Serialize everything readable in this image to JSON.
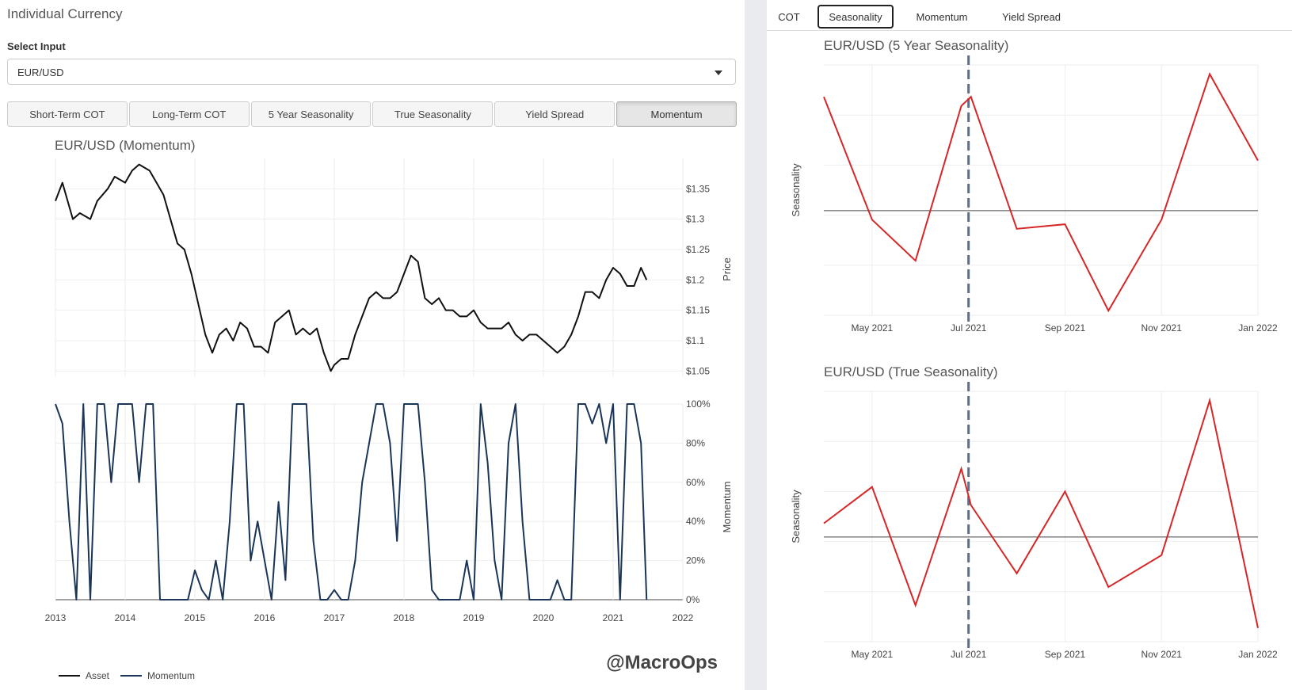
{
  "left_panel": {
    "title": "Individual Currency",
    "input_label": "Select Input",
    "select_value": "EUR/USD",
    "buttons": [
      "Short-Term COT",
      "Long-Term COT",
      "5 Year Seasonality",
      "True Seasonality",
      "Yield Spread",
      "Momentum"
    ],
    "active_button": "Momentum",
    "watermark": "@MacroOps"
  },
  "right_panel": {
    "tabs": [
      "COT",
      "Seasonality",
      "Momentum",
      "Yield Spread"
    ],
    "active_tab": "Seasonality"
  },
  "colors": {
    "asset": "#111111",
    "momentum": "#1b3558",
    "seasonality": "#d62728",
    "event_line": "#5a6e8e"
  },
  "chart_data": [
    {
      "type": "line",
      "title": "EUR/USD (Momentum)",
      "panel": "price",
      "ylabel": "Price",
      "ylim": [
        1.04,
        1.4
      ],
      "y_ticks": [
        1.05,
        1.1,
        1.15,
        1.2,
        1.25,
        1.3,
        1.35
      ],
      "y_tick_labels": [
        "$1.05",
        "$1.1",
        "$1.15",
        "$1.2",
        "$1.25",
        "$1.3",
        "$1.35"
      ],
      "x_ticks": [
        "2013",
        "2014",
        "2015",
        "2016",
        "2017",
        "2018",
        "2019",
        "2020",
        "2021",
        "2022"
      ],
      "xlim": [
        2013.0,
        2022.0
      ],
      "series": [
        {
          "name": "Asset",
          "x": [
            2013.0,
            2013.1,
            2013.25,
            2013.35,
            2013.5,
            2013.6,
            2013.75,
            2013.85,
            2014.0,
            2014.1,
            2014.2,
            2014.35,
            2014.45,
            2014.55,
            2014.65,
            2014.75,
            2014.85,
            2014.95,
            2015.05,
            2015.15,
            2015.25,
            2015.35,
            2015.45,
            2015.55,
            2015.65,
            2015.75,
            2015.85,
            2015.95,
            2016.05,
            2016.15,
            2016.25,
            2016.35,
            2016.45,
            2016.55,
            2016.65,
            2016.75,
            2016.85,
            2016.95,
            2017.0,
            2017.1,
            2017.2,
            2017.3,
            2017.4,
            2017.5,
            2017.6,
            2017.7,
            2017.8,
            2017.9,
            2018.0,
            2018.1,
            2018.2,
            2018.3,
            2018.4,
            2018.5,
            2018.6,
            2018.7,
            2018.8,
            2018.9,
            2019.0,
            2019.1,
            2019.2,
            2019.3,
            2019.4,
            2019.5,
            2019.6,
            2019.7,
            2019.8,
            2019.9,
            2020.0,
            2020.1,
            2020.2,
            2020.3,
            2020.4,
            2020.5,
            2020.6,
            2020.7,
            2020.8,
            2020.9,
            2021.0,
            2021.1,
            2021.2,
            2021.3,
            2021.4,
            2021.48
          ],
          "y": [
            1.33,
            1.36,
            1.3,
            1.31,
            1.3,
            1.33,
            1.35,
            1.37,
            1.36,
            1.38,
            1.39,
            1.38,
            1.36,
            1.34,
            1.3,
            1.26,
            1.25,
            1.21,
            1.16,
            1.11,
            1.08,
            1.11,
            1.12,
            1.1,
            1.13,
            1.12,
            1.09,
            1.09,
            1.08,
            1.13,
            1.14,
            1.15,
            1.11,
            1.12,
            1.11,
            1.12,
            1.08,
            1.05,
            1.06,
            1.07,
            1.07,
            1.11,
            1.14,
            1.17,
            1.18,
            1.17,
            1.17,
            1.18,
            1.21,
            1.24,
            1.23,
            1.17,
            1.16,
            1.17,
            1.15,
            1.15,
            1.14,
            1.14,
            1.15,
            1.13,
            1.12,
            1.12,
            1.12,
            1.13,
            1.11,
            1.1,
            1.11,
            1.11,
            1.1,
            1.09,
            1.08,
            1.09,
            1.11,
            1.14,
            1.18,
            1.18,
            1.17,
            1.2,
            1.22,
            1.21,
            1.19,
            1.19,
            1.22,
            1.2
          ]
        }
      ]
    },
    {
      "type": "line",
      "panel": "momentum",
      "ylabel": "Momentum",
      "ylim": [
        0,
        100
      ],
      "y_ticks": [
        0,
        20,
        40,
        60,
        80,
        100
      ],
      "y_tick_labels": [
        "0%",
        "20%",
        "40%",
        "60%",
        "80%",
        "100%"
      ],
      "xlim": [
        2013.0,
        2022.0
      ],
      "series": [
        {
          "name": "Momentum",
          "x": [
            2013.0,
            2013.1,
            2013.2,
            2013.3,
            2013.4,
            2013.5,
            2013.6,
            2013.7,
            2013.8,
            2013.9,
            2014.0,
            2014.1,
            2014.2,
            2014.3,
            2014.4,
            2014.5,
            2014.6,
            2014.7,
            2014.8,
            2014.9,
            2015.0,
            2015.1,
            2015.2,
            2015.3,
            2015.4,
            2015.5,
            2015.6,
            2015.7,
            2015.8,
            2015.9,
            2016.0,
            2016.1,
            2016.2,
            2016.3,
            2016.4,
            2016.5,
            2016.6,
            2016.7,
            2016.8,
            2016.9,
            2017.0,
            2017.1,
            2017.2,
            2017.3,
            2017.4,
            2017.5,
            2017.6,
            2017.7,
            2017.8,
            2017.9,
            2018.0,
            2018.1,
            2018.2,
            2018.3,
            2018.4,
            2018.5,
            2018.6,
            2018.7,
            2018.8,
            2018.9,
            2019.0,
            2019.1,
            2019.2,
            2019.3,
            2019.4,
            2019.5,
            2019.6,
            2019.7,
            2019.8,
            2019.9,
            2020.0,
            2020.1,
            2020.2,
            2020.3,
            2020.4,
            2020.5,
            2020.6,
            2020.7,
            2020.8,
            2020.9,
            2021.0,
            2021.1,
            2021.2,
            2021.3,
            2021.4,
            2021.48
          ],
          "y": [
            100,
            90,
            40,
            0,
            100,
            0,
            100,
            100,
            60,
            100,
            100,
            100,
            60,
            100,
            100,
            0,
            0,
            0,
            0,
            0,
            15,
            5,
            0,
            20,
            0,
            40,
            100,
            100,
            20,
            40,
            20,
            0,
            50,
            10,
            100,
            100,
            100,
            30,
            0,
            0,
            5,
            0,
            0,
            20,
            60,
            80,
            100,
            100,
            80,
            30,
            100,
            100,
            100,
            60,
            5,
            0,
            0,
            0,
            0,
            20,
            0,
            100,
            70,
            20,
            0,
            80,
            100,
            40,
            0,
            0,
            0,
            0,
            10,
            0,
            0,
            100,
            100,
            90,
            100,
            80,
            100,
            0,
            100,
            100,
            80,
            0
          ]
        }
      ]
    },
    {
      "type": "line",
      "title": "EUR/USD (5 Year Seasonality)",
      "ylabel": "Seasonality",
      "x_ticks": [
        "May 2021",
        "Jul 2021",
        "Sep 2021",
        "Nov 2021",
        "Jan 2022"
      ],
      "xlim": [
        0,
        9.0
      ],
      "ylim": [
        -2.3,
        3.2
      ],
      "reference_line": 0,
      "vertical_marker": 3.0,
      "series": [
        {
          "name": "",
          "x": [
            0.0,
            1.0,
            1.9,
            2.85,
            3.05,
            4.0,
            5.0,
            5.9,
            7.0,
            8.0,
            9.0
          ],
          "y": [
            2.5,
            -0.2,
            -1.1,
            2.3,
            2.5,
            -0.4,
            -0.3,
            -2.2,
            -0.2,
            3.0,
            1.1
          ]
        }
      ]
    },
    {
      "type": "line",
      "title": "EUR/USD (True Seasonality)",
      "ylabel": "Seasonality",
      "x_ticks": [
        "May 2021",
        "Jul 2021",
        "Sep 2021",
        "Nov 2021",
        "Jan 2022"
      ],
      "xlim": [
        0,
        9.0
      ],
      "ylim": [
        -2.3,
        3.2
      ],
      "reference_line": 0,
      "vertical_marker": 3.0,
      "series": [
        {
          "name": "",
          "x": [
            0.0,
            1.0,
            1.9,
            2.85,
            3.05,
            4.0,
            5.0,
            5.9,
            7.0,
            8.0,
            9.0
          ],
          "y": [
            0.3,
            1.1,
            -1.5,
            1.5,
            0.7,
            -0.8,
            1.0,
            -1.1,
            -0.4,
            3.0,
            -2.0
          ]
        }
      ]
    }
  ],
  "legend": {
    "items": [
      "Asset",
      "Momentum"
    ]
  }
}
